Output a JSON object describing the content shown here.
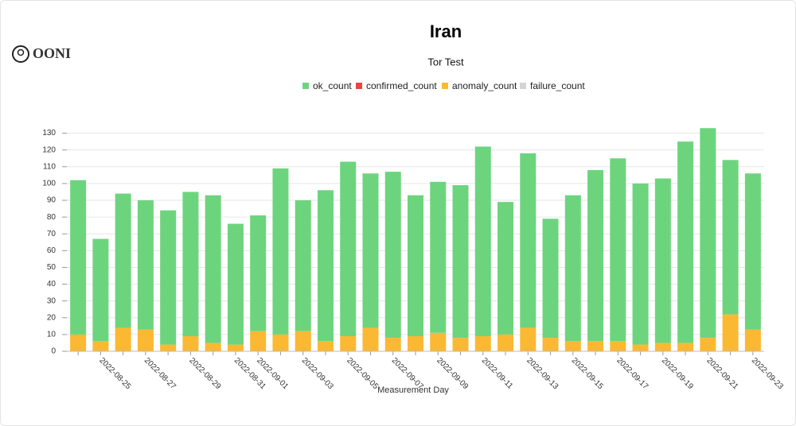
{
  "logo": "OONI",
  "chart_data": {
    "type": "bar",
    "stacked": true,
    "title": "Iran",
    "subtitle": "Tor Test",
    "x_label": "Measurement Day",
    "categories": [
      null,
      "2022-08-25",
      null,
      "2022-08-27",
      null,
      "2022-08-29",
      null,
      "2022-08-31",
      "2022-09-01",
      null,
      "2022-09-03",
      null,
      "2022-09-05",
      null,
      "2022-09-07",
      null,
      "2022-09-09",
      null,
      "2022-09-11",
      null,
      "2022-09-13",
      null,
      "2022-09-15",
      null,
      "2022-09-17",
      null,
      "2022-09-19",
      null,
      "2022-09-21",
      null,
      "2022-09-23"
    ],
    "series": [
      {
        "name": "ok_count",
        "color": "#6dd47e",
        "values": [
          92,
          61,
          80,
          77,
          80,
          86,
          88,
          72,
          69,
          99,
          78,
          90,
          104,
          92,
          99,
          84,
          90,
          91,
          113,
          79,
          104,
          71,
          87,
          102,
          109,
          96,
          98,
          120,
          125,
          92,
          93
        ]
      },
      {
        "name": "confirmed_count",
        "color": "#e84545",
        "values": [
          0,
          0,
          0,
          0,
          0,
          0,
          0,
          0,
          0,
          0,
          0,
          0,
          0,
          0,
          0,
          0,
          0,
          0,
          0,
          0,
          0,
          0,
          0,
          0,
          0,
          0,
          0,
          0,
          0,
          0,
          0
        ]
      },
      {
        "name": "anomaly_count",
        "color": "#fbb833",
        "values": [
          10,
          6,
          14,
          13,
          4,
          9,
          5,
          4,
          12,
          10,
          12,
          6,
          9,
          14,
          8,
          9,
          11,
          8,
          9,
          10,
          14,
          8,
          6,
          6,
          6,
          4,
          5,
          5,
          8,
          22,
          13
        ]
      },
      {
        "name": "failure_count",
        "color": "#d4d4d4",
        "values": [
          0,
          0,
          0,
          0,
          0,
          0,
          0,
          0,
          0,
          0,
          0,
          0,
          0,
          0,
          0,
          0,
          0,
          0,
          0,
          0,
          0,
          0,
          0,
          0,
          0,
          0,
          0,
          0,
          0,
          0,
          0
        ]
      }
    ],
    "ylim": [
      0,
      135
    ],
    "yticks": [
      0,
      10,
      20,
      30,
      40,
      50,
      60,
      70,
      80,
      90,
      100,
      110,
      120,
      130
    ],
    "grid": true,
    "legend": "top"
  }
}
